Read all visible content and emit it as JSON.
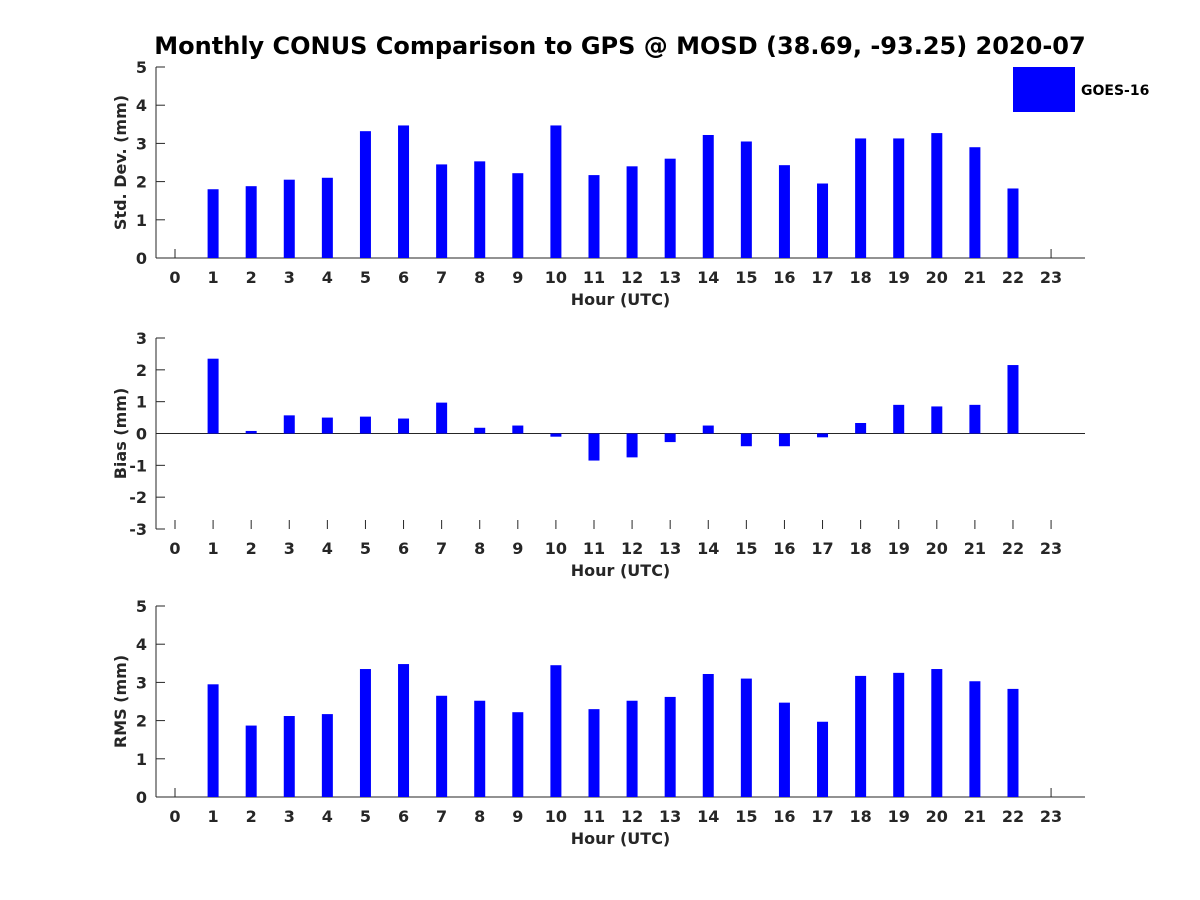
{
  "title": "Monthly CONUS Comparison to GPS @ MOSD (38.69, -93.25) 2020-07",
  "legend": {
    "label": "GOES-16",
    "color": "#0000ff",
    "placement": "top-right"
  },
  "chart_data": [
    {
      "type": "bar",
      "name": "std-dev",
      "xlabel": "Hour (UTC)",
      "ylabel": "Std. Dev. (mm)",
      "ylim": [
        0,
        5
      ],
      "yticks": [
        "0",
        "1",
        "2",
        "3",
        "4",
        "5"
      ],
      "categories": [
        "0",
        "1",
        "2",
        "3",
        "4",
        "5",
        "6",
        "7",
        "8",
        "9",
        "10",
        "11",
        "12",
        "13",
        "14",
        "15",
        "16",
        "17",
        "18",
        "19",
        "20",
        "21",
        "22",
        "23"
      ],
      "values": [
        null,
        1.8,
        1.88,
        2.05,
        2.1,
        3.32,
        3.47,
        2.45,
        2.53,
        2.22,
        3.47,
        2.17,
        2.4,
        2.6,
        3.22,
        3.05,
        2.43,
        1.95,
        3.13,
        3.13,
        3.27,
        2.9,
        1.82,
        null
      ]
    },
    {
      "type": "bar",
      "name": "bias",
      "xlabel": "Hour (UTC)",
      "ylabel": "Bias (mm)",
      "ylim": [
        -3,
        3
      ],
      "yticks": [
        "-3",
        "-2",
        "-1",
        "0",
        "1",
        "2",
        "3"
      ],
      "categories": [
        "0",
        "1",
        "2",
        "3",
        "4",
        "5",
        "6",
        "7",
        "8",
        "9",
        "10",
        "11",
        "12",
        "13",
        "14",
        "15",
        "16",
        "17",
        "18",
        "19",
        "20",
        "21",
        "22",
        "23"
      ],
      "values": [
        null,
        2.35,
        0.08,
        0.57,
        0.5,
        0.53,
        0.47,
        0.97,
        0.18,
        0.25,
        -0.1,
        -0.85,
        -0.75,
        -0.27,
        0.25,
        -0.4,
        -0.4,
        -0.12,
        0.33,
        0.9,
        0.85,
        0.9,
        2.15,
        null
      ]
    },
    {
      "type": "bar",
      "name": "rms",
      "xlabel": "Hour (UTC)",
      "ylabel": "RMS (mm)",
      "ylim": [
        0,
        5
      ],
      "yticks": [
        "0",
        "1",
        "2",
        "3",
        "4",
        "5"
      ],
      "categories": [
        "0",
        "1",
        "2",
        "3",
        "4",
        "5",
        "6",
        "7",
        "8",
        "9",
        "10",
        "11",
        "12",
        "13",
        "14",
        "15",
        "16",
        "17",
        "18",
        "19",
        "20",
        "21",
        "22",
        "23"
      ],
      "values": [
        null,
        2.95,
        1.87,
        2.12,
        2.17,
        3.35,
        3.48,
        2.65,
        2.52,
        2.22,
        3.45,
        2.3,
        2.52,
        2.62,
        3.22,
        3.1,
        2.47,
        1.97,
        3.17,
        3.25,
        3.35,
        3.03,
        2.83,
        null
      ]
    }
  ]
}
